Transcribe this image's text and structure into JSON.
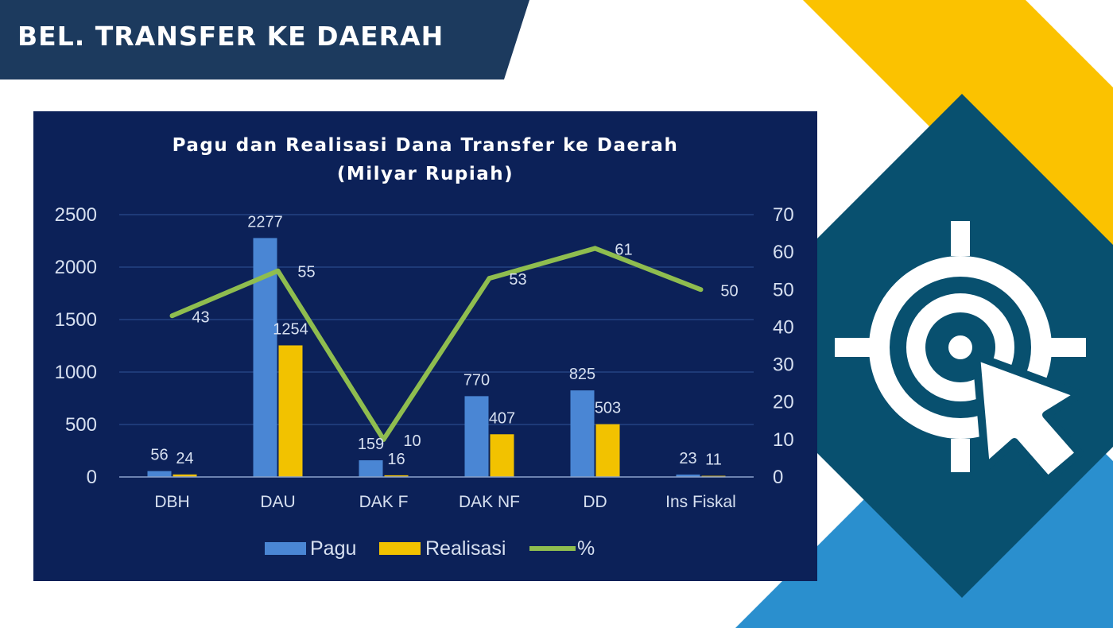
{
  "header": {
    "title": "BEL. TRANSFER KE DAERAH"
  },
  "colors": {
    "banner": "#1c3a5e",
    "yellow": "#fbc200",
    "teal": "#08506f",
    "blue": "#2a8fce",
    "chart_bg": "#0c2158",
    "pagu": "#4a86d4",
    "realisasi": "#f2c200",
    "percent": "#8fbd4f"
  },
  "icon": {
    "name": "target-cursor-icon"
  },
  "chart_data": {
    "type": "bar",
    "title": "Pagu dan Realisasi Dana Transfer ke Daerah",
    "subtitle": "(Milyar Rupiah)",
    "categories": [
      "DBH",
      "DAU",
      "DAK F",
      "DAK NF",
      "DD",
      "Ins Fiskal"
    ],
    "series": [
      {
        "name": "Pagu",
        "type": "bar",
        "axis": "left",
        "values": [
          56,
          2277,
          159,
          770,
          825,
          23
        ]
      },
      {
        "name": "Realisasi",
        "type": "bar",
        "axis": "left",
        "values": [
          24,
          1254,
          16,
          407,
          503,
          11
        ]
      },
      {
        "name": "%",
        "type": "line",
        "axis": "right",
        "values": [
          43,
          55,
          10,
          53,
          61,
          50
        ]
      }
    ],
    "ylim": [
      0,
      2500
    ],
    "yticks": [
      0,
      500,
      1000,
      1500,
      2000,
      2500
    ],
    "y2lim": [
      0,
      70
    ],
    "y2ticks": [
      0,
      10,
      20,
      30,
      40,
      50,
      60,
      70
    ],
    "grid": true,
    "legend": "bottom"
  }
}
